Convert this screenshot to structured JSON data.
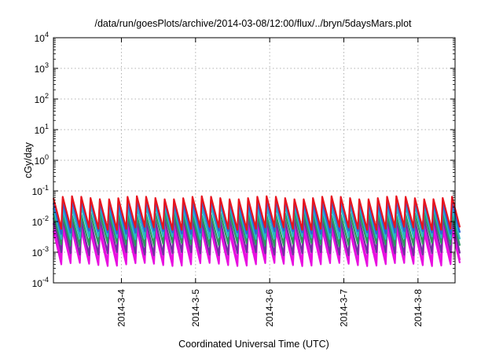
{
  "chart_data": {
    "type": "line",
    "title": "/data/run/goesPlots/archive/2014-03-08/12:00/flux/../bryn/5daysMars.plot",
    "xlabel": "Coordinated Universal Time (UTC)",
    "ylabel": "cGy/day",
    "yscale": "log",
    "ylim": [
      0.0001,
      10000
    ],
    "xlim": [
      "2014-03-03T02:00",
      "2014-03-08T12:00"
    ],
    "grid": true,
    "y_ticks": [
      {
        "base": "10",
        "exp": "-4"
      },
      {
        "base": "10",
        "exp": "-3"
      },
      {
        "base": "10",
        "exp": "-2"
      },
      {
        "base": "10",
        "exp": "-1"
      },
      {
        "base": "10",
        "exp": "0"
      },
      {
        "base": "10",
        "exp": "1"
      },
      {
        "base": "10",
        "exp": "2"
      },
      {
        "base": "10",
        "exp": "3"
      },
      {
        "base": "10",
        "exp": "4"
      }
    ],
    "x_ticks": [
      {
        "label": "2014-3-4",
        "date": "2014-03-04T00:00"
      },
      {
        "label": "2014-3-5",
        "date": "2014-03-05T00:00"
      },
      {
        "label": "2014-3-6",
        "date": "2014-03-06T00:00"
      },
      {
        "label": "2014-3-7",
        "date": "2014-03-07T00:00"
      },
      {
        "label": "2014-3-8",
        "date": "2014-03-08T00:00"
      }
    ],
    "series_pattern": {
      "period_hours": 3,
      "cycles": 44,
      "first_peak": "2014-03-03T02:00"
    },
    "series": [
      {
        "color": "#e8141e",
        "peak": 0.06,
        "trough": 0.006
      },
      {
        "color": "#2f5fd8",
        "peak": 0.045,
        "trough": 0.0045
      },
      {
        "color": "#27b7c6",
        "peak": 0.03,
        "trough": 0.003
      },
      {
        "color": "#2a9a5c",
        "peak": 0.018,
        "trough": 0.0018
      },
      {
        "color": "#7030a0",
        "peak": 0.012,
        "trough": 0.0009
      },
      {
        "color": "#e80fe0",
        "peak": 0.008,
        "trough": 0.0005
      },
      {
        "color": "#e80fe0",
        "peak": 0.005,
        "trough": 0.0004
      }
    ]
  }
}
